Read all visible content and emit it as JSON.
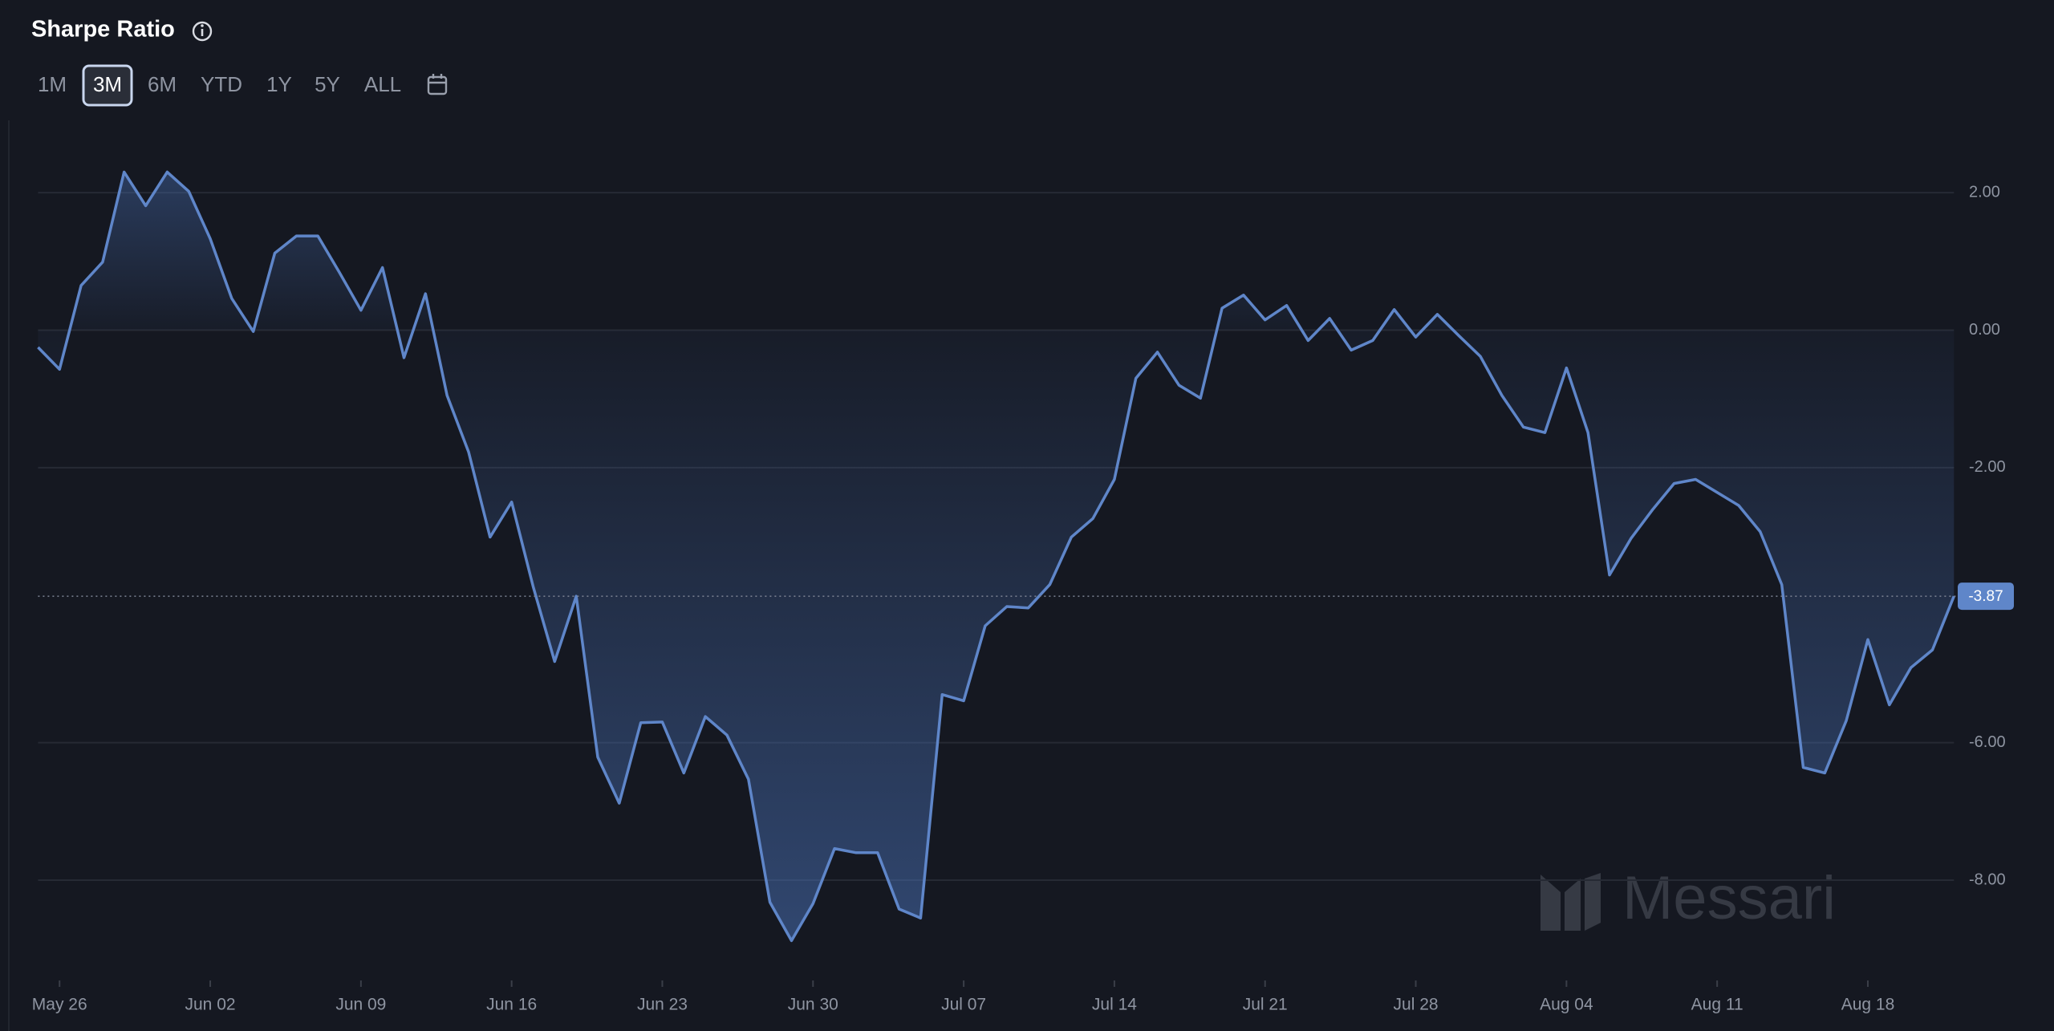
{
  "header": {
    "title": "Sharpe Ratio",
    "range_buttons": [
      "1M",
      "3M",
      "6M",
      "YTD",
      "1Y",
      "5Y",
      "ALL"
    ],
    "selected_range": "3M"
  },
  "chart_data": {
    "type": "area",
    "color": "#5f86c9",
    "categories": [
      null,
      "May 26",
      null,
      null,
      null,
      null,
      null,
      null,
      "Jun 02",
      null,
      null,
      null,
      null,
      null,
      null,
      "Jun 09",
      null,
      null,
      null,
      null,
      null,
      null,
      "Jun 16",
      null,
      null,
      null,
      null,
      null,
      null,
      "Jun 23",
      null,
      null,
      null,
      null,
      null,
      null,
      "Jun 30",
      null,
      null,
      null,
      null,
      null,
      null,
      "Jul 07",
      null,
      null,
      null,
      null,
      null,
      null,
      "Jul 14",
      null,
      null,
      null,
      null,
      null,
      null,
      "Jul 21",
      null,
      null,
      null,
      null,
      null,
      null,
      "Jul 28",
      null,
      null,
      null,
      null,
      null,
      null,
      "Aug 04",
      null,
      null,
      null,
      null,
      null,
      null,
      "Aug 11",
      null,
      null,
      null,
      null,
      null,
      null,
      "Aug 18",
      null,
      null,
      null,
      null
    ],
    "values": [
      -0.25,
      -0.57,
      0.65,
      0.99,
      2.3,
      1.81,
      2.3,
      2.02,
      1.33,
      0.46,
      -0.02,
      1.12,
      1.37,
      1.37,
      0.84,
      0.29,
      0.91,
      -0.4,
      0.53,
      -0.95,
      -1.77,
      -3.01,
      -2.5,
      -3.73,
      -4.82,
      -3.87,
      -6.21,
      -6.88,
      -5.71,
      -5.7,
      -6.44,
      -5.62,
      -5.89,
      -6.53,
      -8.32,
      -8.88,
      -8.34,
      -7.54,
      -7.6,
      -7.6,
      -8.42,
      -8.55,
      -5.3,
      -5.39,
      -4.3,
      -4.02,
      -4.04,
      -3.7,
      -3.01,
      -2.74,
      -2.17,
      -0.7,
      -0.32,
      -0.8,
      -0.99,
      0.32,
      0.51,
      0.15,
      0.36,
      -0.15,
      0.17,
      -0.29,
      -0.15,
      0.3,
      -0.1,
      0.23,
      -0.08,
      -0.38,
      -0.95,
      -1.41,
      -1.49,
      -0.55,
      -1.49,
      -3.56,
      -3.03,
      -2.61,
      -2.23,
      -2.17,
      -2.36,
      -2.55,
      -2.93,
      -3.7,
      -6.36,
      -6.44,
      -5.68,
      -4.5,
      -5.45,
      -4.91,
      -4.65,
      -3.87
    ],
    "ylim": [
      -9.4,
      2.9
    ],
    "yticks": [
      {
        "value": 2,
        "label": "2.00"
      },
      {
        "value": 0,
        "label": "0.00"
      },
      {
        "value": -2,
        "label": "-2.00"
      },
      {
        "value": -6,
        "label": "-6.00"
      },
      {
        "value": -8,
        "label": "-8.00"
      }
    ],
    "grid": true
  },
  "watermark": "Messari"
}
